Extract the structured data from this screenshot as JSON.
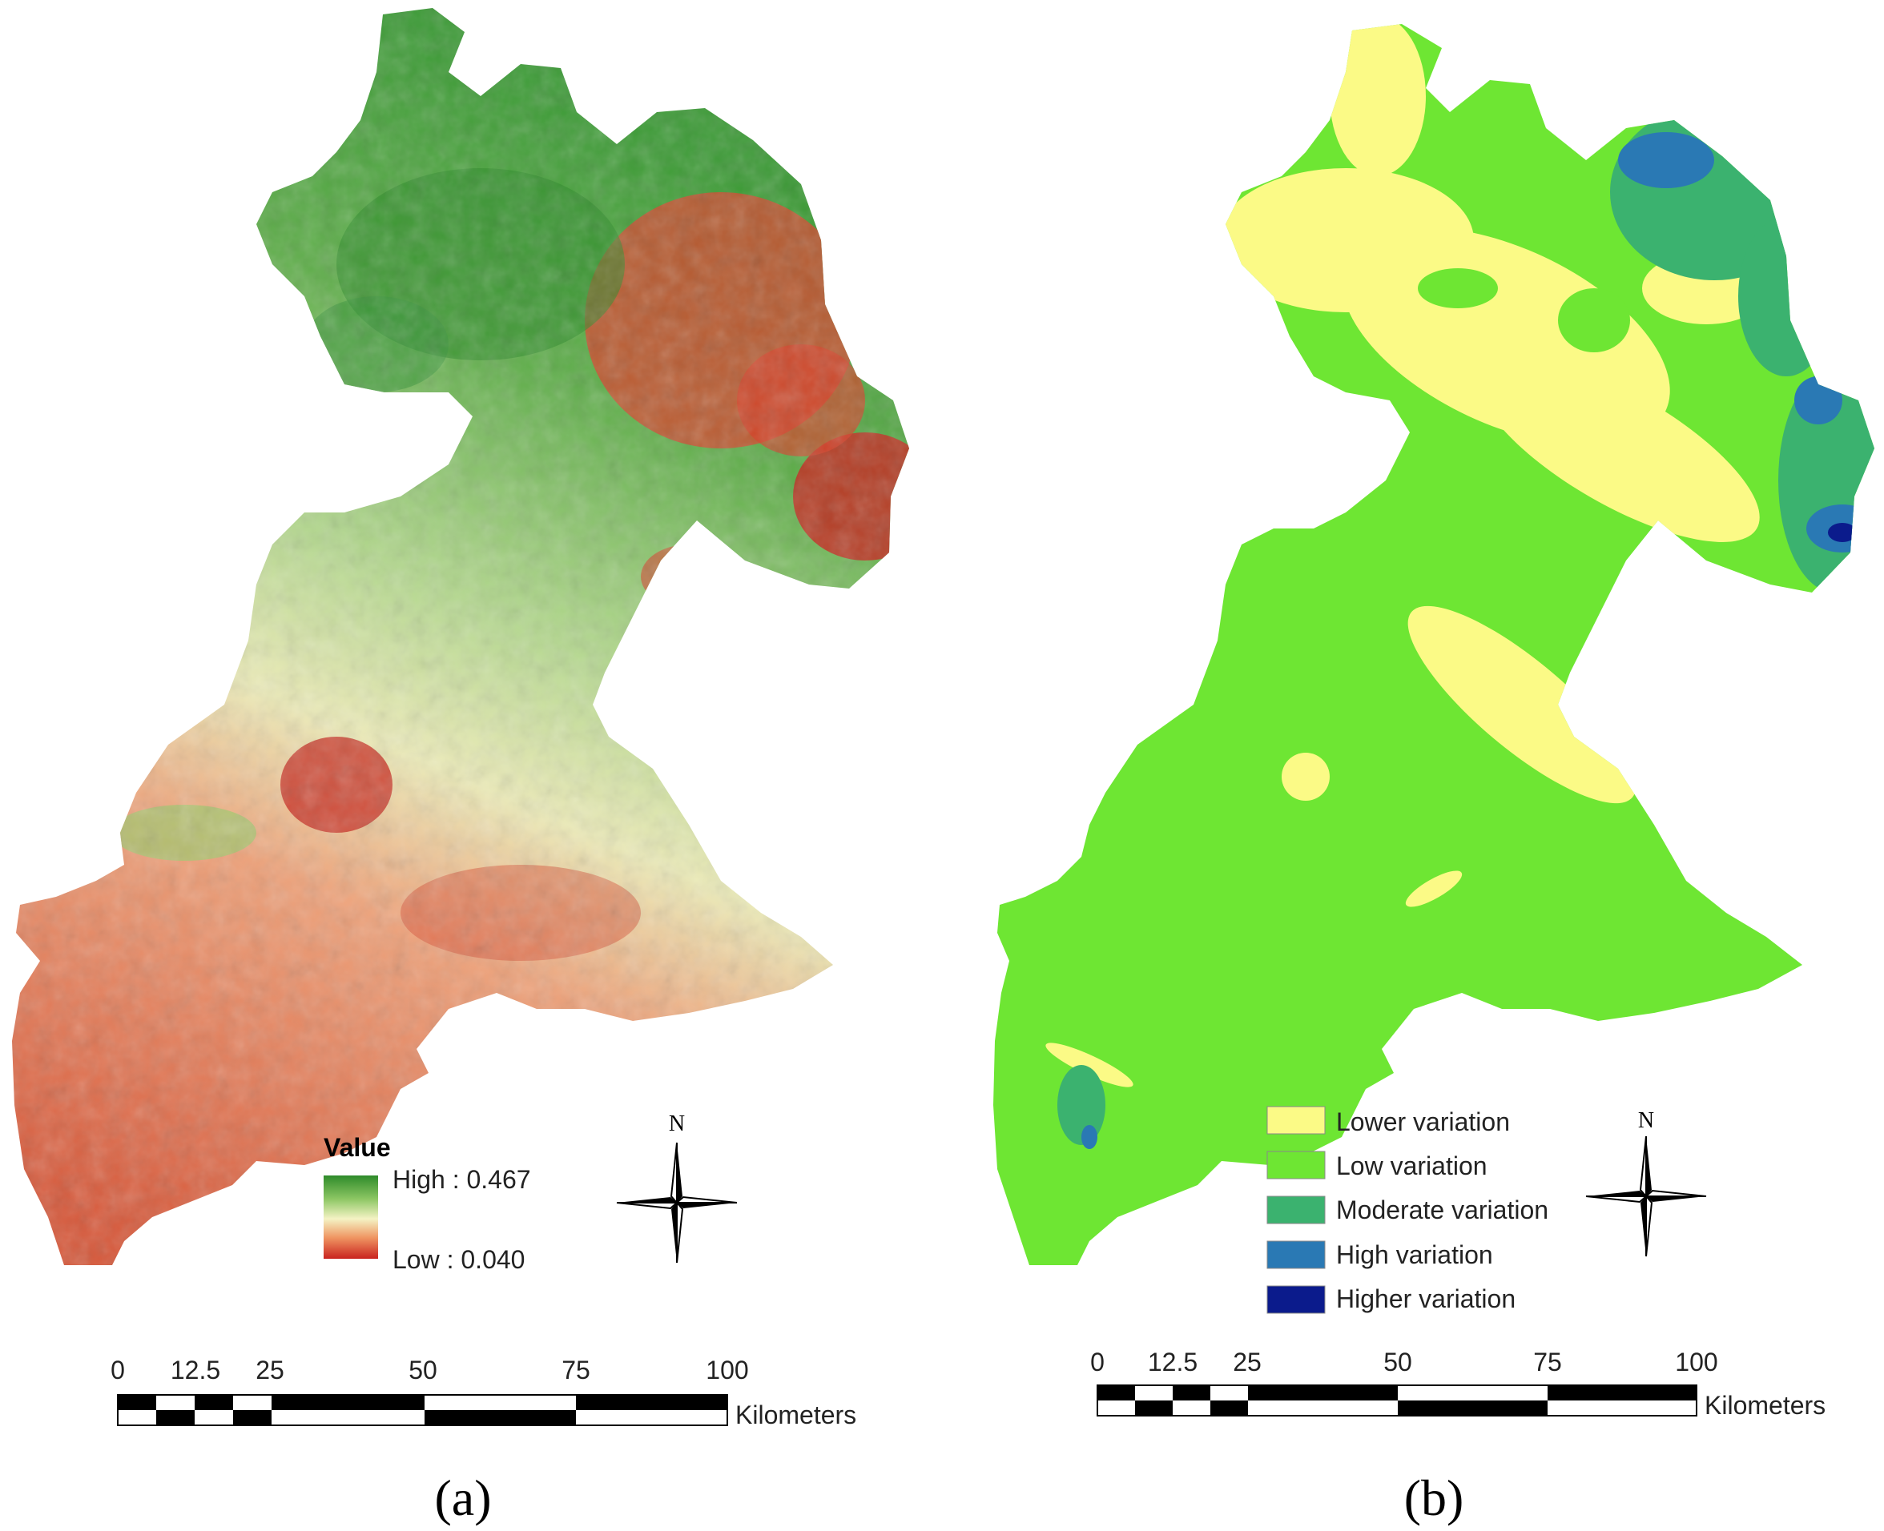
{
  "panels": [
    {
      "caption": "(a)",
      "legend": {
        "title": "Value",
        "high_label": "High : 0.467",
        "low_label": "Low : 0.040",
        "ramp_colors": [
          "#2e8b2a",
          "#8cc663",
          "#f4f3c4",
          "#ef9461",
          "#c9231e"
        ]
      },
      "north_arrow": "N",
      "scale_bar": {
        "ticks": [
          "0",
          "12.5",
          "25",
          "50",
          "75",
          "100"
        ],
        "unit": "Kilometers"
      }
    },
    {
      "caption": "(b)",
      "legend": {
        "classes": [
          {
            "label": "Lower variation",
            "color": "#fbfa86"
          },
          {
            "label": "Low variation",
            "color": "#6ee633"
          },
          {
            "label": "Moderate variation",
            "color": "#3bb26f"
          },
          {
            "label": "High variation",
            "color": "#2a79b4"
          },
          {
            "label": "Higher variation",
            "color": "#0b1b8c"
          }
        ]
      },
      "north_arrow": "N",
      "scale_bar": {
        "ticks": [
          "0",
          "12.5",
          "25",
          "50",
          "75",
          "100"
        ],
        "unit": "Kilometers"
      }
    }
  ]
}
